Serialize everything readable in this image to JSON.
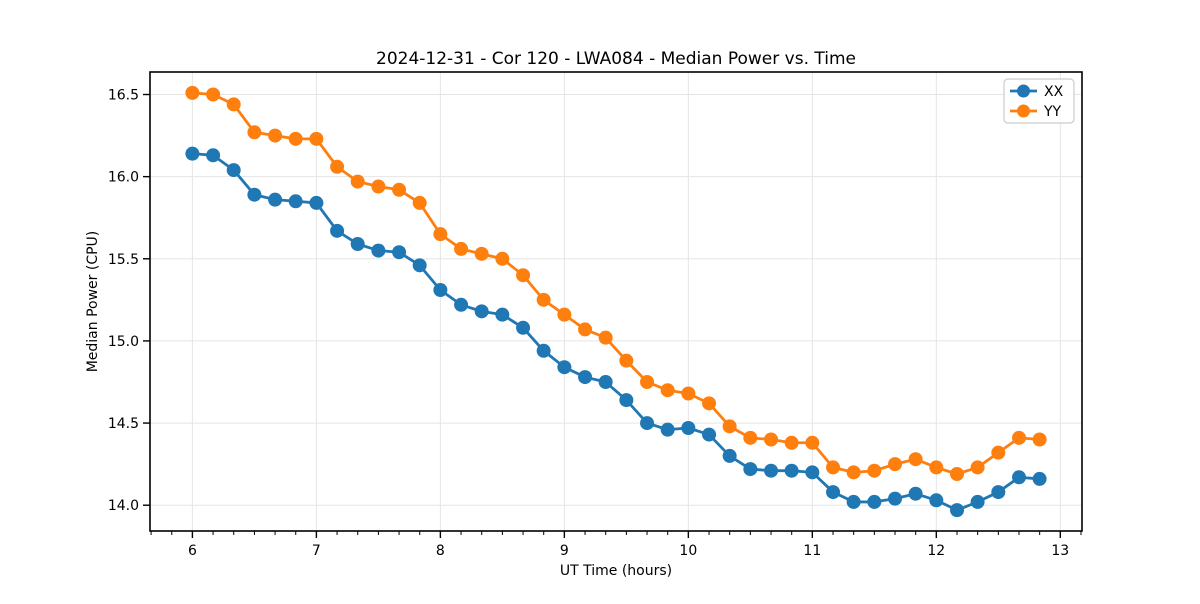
{
  "page": {
    "background": "#ffffff"
  },
  "chart_data": {
    "type": "line",
    "title": "2024-12-31 - Cor 120 - LWA084 - Median Power vs. Time",
    "xlabel": "UT Time (hours)",
    "ylabel": "Median Power (CPU)",
    "xlim": [
      5.658,
      13.175
    ],
    "ylim": [
      13.843,
      16.637
    ],
    "x_ticks": [
      6,
      7,
      8,
      9,
      10,
      11,
      12,
      13
    ],
    "x_tick_labels": [
      "6",
      "7",
      "8",
      "9",
      "10",
      "11",
      "12",
      "13"
    ],
    "y_ticks": [
      14.0,
      14.5,
      15.0,
      15.5,
      16.0,
      16.5
    ],
    "y_tick_labels": [
      "14.0",
      "14.5",
      "15.0",
      "15.5",
      "16.0",
      "16.5"
    ],
    "x_minor_tick_step": 0.16667,
    "grid": true,
    "grid_color": "#e5e5e5",
    "spine_color": "#000000",
    "legend": {
      "position": "upper right",
      "entries": [
        "XX",
        "YY"
      ]
    },
    "x": [
      6.0,
      6.167,
      6.333,
      6.5,
      6.667,
      6.833,
      7.0,
      7.167,
      7.333,
      7.5,
      7.667,
      7.833,
      8.0,
      8.167,
      8.333,
      8.5,
      8.667,
      8.833,
      9.0,
      9.167,
      9.333,
      9.5,
      9.667,
      9.833,
      10.0,
      10.167,
      10.333,
      10.5,
      10.667,
      10.833,
      11.0,
      11.167,
      11.333,
      11.5,
      11.667,
      11.833,
      12.0,
      12.167,
      12.333,
      12.5,
      12.667,
      12.833
    ],
    "series": [
      {
        "name": "XX",
        "color": "#1f77b4",
        "values": [
          16.14,
          16.13,
          16.04,
          15.89,
          15.86,
          15.85,
          15.84,
          15.67,
          15.59,
          15.55,
          15.54,
          15.46,
          15.31,
          15.22,
          15.18,
          15.16,
          15.08,
          14.94,
          14.84,
          14.78,
          14.75,
          14.64,
          14.5,
          14.46,
          14.47,
          14.43,
          14.3,
          14.22,
          14.21,
          14.21,
          14.2,
          14.08,
          14.02,
          14.02,
          14.04,
          14.07,
          14.03,
          13.97,
          14.02,
          14.08,
          14.17,
          14.16
        ]
      },
      {
        "name": "YY",
        "color": "#ff7f0e",
        "values": [
          16.51,
          16.5,
          16.44,
          16.27,
          16.25,
          16.23,
          16.23,
          16.06,
          15.97,
          15.94,
          15.92,
          15.84,
          15.65,
          15.56,
          15.53,
          15.5,
          15.4,
          15.25,
          15.16,
          15.07,
          15.02,
          14.88,
          14.75,
          14.7,
          14.68,
          14.62,
          14.48,
          14.41,
          14.4,
          14.38,
          14.38,
          14.23,
          14.2,
          14.21,
          14.25,
          14.28,
          14.23,
          14.19,
          14.23,
          14.32,
          14.41,
          14.4
        ]
      }
    ]
  }
}
